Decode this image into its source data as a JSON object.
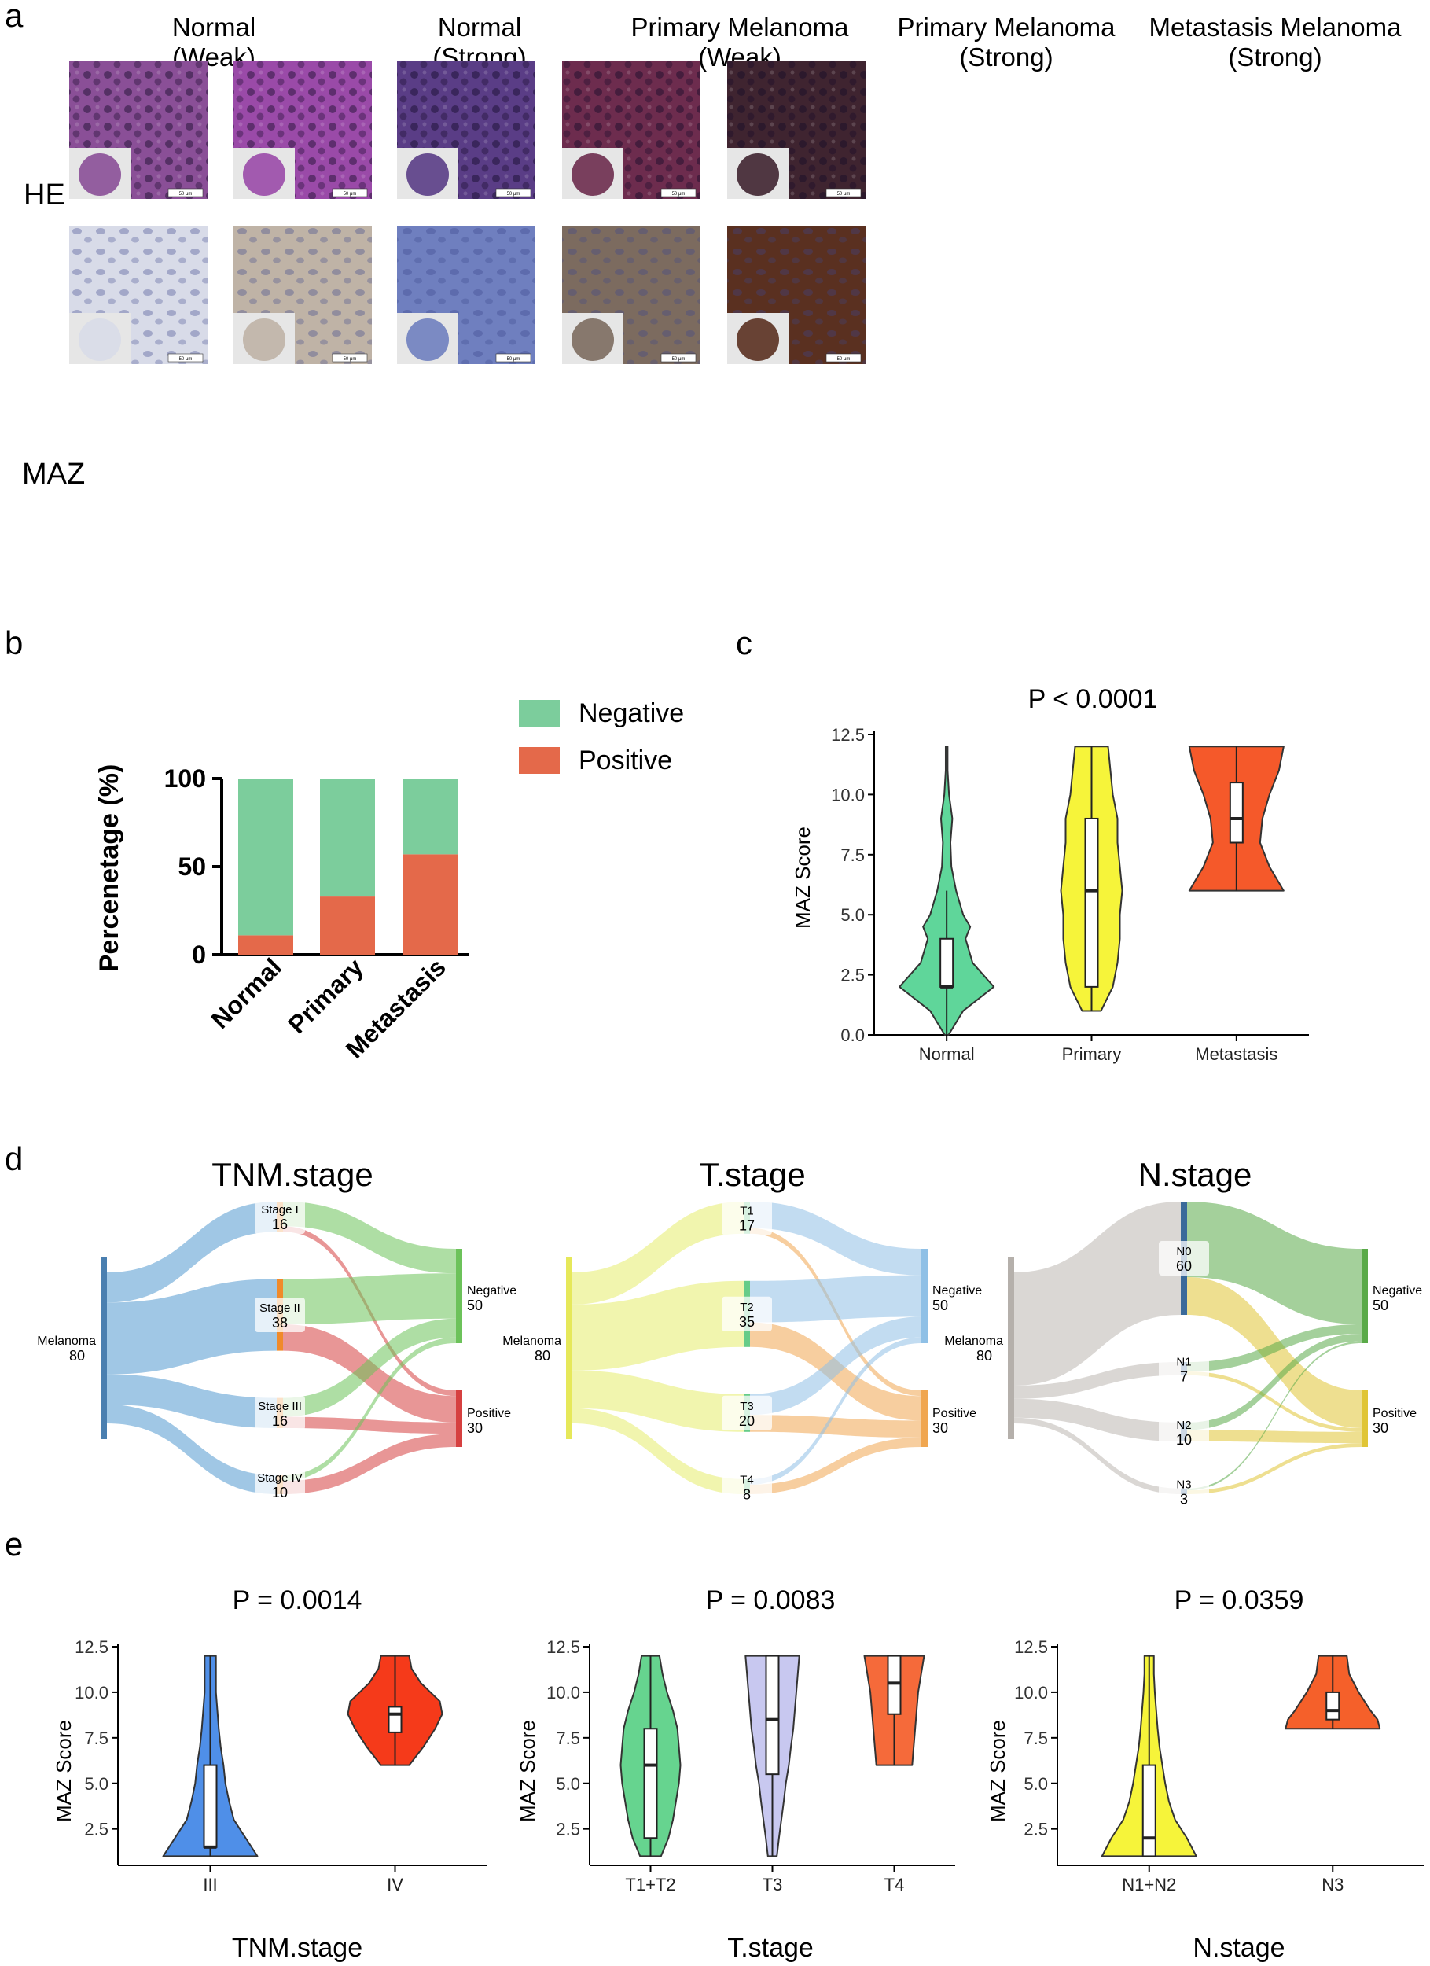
{
  "panel_labels": [
    "a",
    "b",
    "c",
    "d",
    "e"
  ],
  "panel_a": {
    "column_headers": [
      {
        "line1": "Normal",
        "line2": "(Weak)"
      },
      {
        "line1": "Normal",
        "line2": "(Strong)"
      },
      {
        "line1": "Primary Melanoma",
        "line2": "(Weak)"
      },
      {
        "line1": "Primary Melanoma",
        "line2": "(Strong)"
      },
      {
        "line1": "Metastasis Melanoma",
        "line2": "(Strong)"
      }
    ],
    "row_labels": [
      "HE",
      "MAZ"
    ],
    "scale_bar": "50 μm",
    "he_colors": [
      "#8a4f97",
      "#9a4aa8",
      "#5a3d86",
      "#6d2c4e",
      "#3f2430"
    ],
    "maz_colors": [
      "#d8dbe8",
      "#bfb3a6",
      "#6f7fbf",
      "#7c6b5f",
      "#5a3020"
    ]
  },
  "chart_data": [
    {
      "id": "b",
      "type": "bar",
      "stacked": true,
      "categories": [
        "Normal",
        "Primary",
        "Metastasis"
      ],
      "series": [
        {
          "name": "Positive",
          "values": [
            11,
            33,
            57
          ],
          "color": "#e4694a"
        },
        {
          "name": "Negative",
          "values": [
            89,
            67,
            43
          ],
          "color": "#7ccd9c"
        }
      ],
      "ylabel": "Percenetage (%)",
      "yticks": [
        "0",
        "50",
        "100"
      ],
      "ylim": [
        0,
        100
      ],
      "legend_position": "top-right"
    },
    {
      "id": "c",
      "type": "violin",
      "title": "P < 0.0001",
      "ylabel": "MAZ Score",
      "categories": [
        "Normal",
        "Primary",
        "Metastasis"
      ],
      "yticks": [
        "0.0",
        "2.5",
        "5.0",
        "7.5",
        "10.0",
        "12.5"
      ],
      "ylim": [
        0,
        12.5
      ],
      "groups": [
        {
          "name": "Normal",
          "color": "#5fd69a",
          "min": 0,
          "max": 12,
          "q1": 2,
          "median": 2,
          "q3": 4,
          "whisker_low": 0,
          "whisker_high": 6,
          "density": [
            [
              0,
              0.04
            ],
            [
              1,
              0.35
            ],
            [
              2,
              1.0
            ],
            [
              3,
              0.55
            ],
            [
              4,
              0.4
            ],
            [
              4.5,
              0.5
            ],
            [
              5,
              0.35
            ],
            [
              6,
              0.2
            ],
            [
              7,
              0.1
            ],
            [
              8,
              0.08
            ],
            [
              9,
              0.12
            ],
            [
              10,
              0.05
            ],
            [
              11,
              0.02
            ],
            [
              12,
              0.02
            ]
          ]
        },
        {
          "name": "Primary",
          "color": "#f6f43a",
          "min": 1,
          "max": 12,
          "q1": 2,
          "median": 6,
          "q3": 9,
          "whisker_low": 1,
          "whisker_high": 12,
          "density": [
            [
              1,
              0.2
            ],
            [
              2,
              0.45
            ],
            [
              3,
              0.55
            ],
            [
              4,
              0.6
            ],
            [
              5,
              0.6
            ],
            [
              6,
              0.65
            ],
            [
              7,
              0.6
            ],
            [
              8,
              0.55
            ],
            [
              9,
              0.55
            ],
            [
              10,
              0.45
            ],
            [
              11,
              0.4
            ],
            [
              12,
              0.35
            ]
          ]
        },
        {
          "name": "Metastasis",
          "color": "#f5592a",
          "min": 6,
          "max": 12,
          "q1": 8,
          "median": 9,
          "q3": 10.5,
          "whisker_low": 6,
          "whisker_high": 12,
          "density": [
            [
              6,
              1.0
            ],
            [
              7,
              0.7
            ],
            [
              8,
              0.5
            ],
            [
              9,
              0.55
            ],
            [
              10,
              0.7
            ],
            [
              11,
              0.9
            ],
            [
              12,
              1.0
            ]
          ]
        }
      ]
    },
    {
      "id": "d1",
      "type": "sankey",
      "title": "TNM.stage",
      "source": {
        "name": "Melanoma",
        "value": 80
      },
      "middle": [
        {
          "name": "Stage I",
          "value": 16,
          "to_negative": 13,
          "to_positive": 3
        },
        {
          "name": "Stage II",
          "value": 38,
          "to_negative": 24,
          "to_positive": 14
        },
        {
          "name": "Stage III",
          "value": 16,
          "to_negative": 10,
          "to_positive": 6
        },
        {
          "name": "Stage IV",
          "value": 10,
          "to_negative": 3,
          "to_positive": 7
        }
      ],
      "targets": [
        {
          "name": "Negative",
          "value": 50
        },
        {
          "name": "Positive",
          "value": 30
        }
      ],
      "source_color": "#4a7fb0",
      "flow_color": "#8fbde0",
      "neg_color": "#6cc25a",
      "pos_color": "#d64040",
      "middle_color": "#f08a2a"
    },
    {
      "id": "d2",
      "type": "sankey",
      "title": "T.stage",
      "source": {
        "name": "Melanoma",
        "value": 80
      },
      "middle": [
        {
          "name": "T1",
          "value": 17,
          "to_negative": 14,
          "to_positive": 3
        },
        {
          "name": "T2",
          "value": 35,
          "to_negative": 22,
          "to_positive": 13
        },
        {
          "name": "T3",
          "value": 20,
          "to_negative": 11,
          "to_positive": 9
        },
        {
          "name": "T4",
          "value": 8,
          "to_negative": 3,
          "to_positive": 5
        }
      ],
      "targets": [
        {
          "name": "Negative",
          "value": 50
        },
        {
          "name": "Positive",
          "value": 30
        }
      ],
      "source_color": "#e6e85a",
      "flow_color": "#eef3a0",
      "neg_color": "#8fc0e6",
      "pos_color": "#f0a650",
      "middle_color": "#66cc88"
    },
    {
      "id": "d3",
      "type": "sankey",
      "title": "N.stage",
      "source": {
        "name": "Melanoma",
        "value": 80
      },
      "middle": [
        {
          "name": "N0",
          "value": 60,
          "to_negative": 40,
          "to_positive": 20
        },
        {
          "name": "N1",
          "value": 7,
          "to_negative": 5,
          "to_positive": 2
        },
        {
          "name": "N2",
          "value": 10,
          "to_negative": 4,
          "to_positive": 6
        },
        {
          "name": "N3",
          "value": 3,
          "to_negative": 1,
          "to_positive": 2
        }
      ],
      "targets": [
        {
          "name": "Negative",
          "value": 50
        },
        {
          "name": "Positive",
          "value": 30
        }
      ],
      "source_color": "#b5b0ab",
      "flow_color": "#d4d0cc",
      "neg_color": "#5aaa48",
      "pos_color": "#e0c535",
      "middle_color": "#3a6a9a"
    },
    {
      "id": "e1",
      "type": "violin",
      "title": "P = 0.0014",
      "xlabel": "TNM.stage",
      "ylabel": "MAZ Score",
      "categories": [
        "III",
        "IV"
      ],
      "yticks": [
        "2.5",
        "5.0",
        "7.5",
        "10.0",
        "12.5"
      ],
      "ylim": [
        0.5,
        12.5
      ],
      "groups": [
        {
          "name": "III",
          "color": "#4f8fe8",
          "min": 1,
          "max": 12,
          "q1": 1.5,
          "median": 1.5,
          "q3": 6,
          "whisker_low": 1,
          "whisker_high": 12,
          "density": [
            [
              1,
              1.0
            ],
            [
              2,
              0.75
            ],
            [
              3,
              0.5
            ],
            [
              4,
              0.4
            ],
            [
              5,
              0.32
            ],
            [
              6,
              0.28
            ],
            [
              7,
              0.22
            ],
            [
              8,
              0.18
            ],
            [
              9,
              0.15
            ],
            [
              10,
              0.12
            ],
            [
              11,
              0.12
            ],
            [
              12,
              0.12
            ]
          ]
        },
        {
          "name": "IV",
          "color": "#f53a1a",
          "min": 6,
          "max": 12,
          "q1": 7.8,
          "median": 8.8,
          "q3": 9.2,
          "whisker_low": 6,
          "whisker_high": 12,
          "density": [
            [
              6,
              0.3
            ],
            [
              6.5,
              0.45
            ],
            [
              7,
              0.6
            ],
            [
              8,
              0.85
            ],
            [
              8.8,
              1.0
            ],
            [
              9.5,
              0.95
            ],
            [
              10.5,
              0.55
            ],
            [
              11.3,
              0.35
            ],
            [
              12,
              0.3
            ]
          ]
        }
      ]
    },
    {
      "id": "e2",
      "type": "violin",
      "title": "P = 0.0083",
      "xlabel": "T.stage",
      "ylabel": "MAZ Score",
      "categories": [
        "T1+T2",
        "T3",
        "T4"
      ],
      "yticks": [
        "2.5",
        "5.0",
        "7.5",
        "10.0",
        "12.5"
      ],
      "ylim": [
        0.5,
        12.5
      ],
      "groups": [
        {
          "name": "T1+T2",
          "color": "#66d48f",
          "min": 1,
          "max": 12,
          "q1": 2,
          "median": 6,
          "q3": 8,
          "whisker_low": 1,
          "whisker_high": 12,
          "density": [
            [
              1,
              0.35
            ],
            [
              2,
              0.6
            ],
            [
              3,
              0.75
            ],
            [
              4,
              0.85
            ],
            [
              5,
              0.95
            ],
            [
              6,
              1.0
            ],
            [
              7,
              0.95
            ],
            [
              8,
              0.9
            ],
            [
              9,
              0.75
            ],
            [
              10,
              0.55
            ],
            [
              11,
              0.4
            ],
            [
              12,
              0.3
            ]
          ]
        },
        {
          "name": "T3",
          "color": "#c8c8f0",
          "min": 1,
          "max": 12,
          "q1": 5.5,
          "median": 8.5,
          "q3": 12,
          "whisker_low": 1,
          "whisker_high": 12,
          "density": [
            [
              1,
              0.15
            ],
            [
              2,
              0.22
            ],
            [
              3,
              0.3
            ],
            [
              4,
              0.38
            ],
            [
              5,
              0.45
            ],
            [
              6,
              0.55
            ],
            [
              7,
              0.62
            ],
            [
              8,
              0.7
            ],
            [
              9,
              0.75
            ],
            [
              10,
              0.8
            ],
            [
              11,
              0.85
            ],
            [
              12,
              0.9
            ]
          ]
        },
        {
          "name": "T4",
          "color": "#f56a3a",
          "min": 6,
          "max": 12,
          "q1": 8.8,
          "median": 10.5,
          "q3": 12,
          "whisker_low": 6,
          "whisker_high": 12,
          "density": [
            [
              6,
              0.6
            ],
            [
              7,
              0.65
            ],
            [
              8,
              0.7
            ],
            [
              9,
              0.75
            ],
            [
              10,
              0.8
            ],
            [
              11,
              0.9
            ],
            [
              12,
              1.0
            ]
          ]
        }
      ]
    },
    {
      "id": "e3",
      "type": "violin",
      "title": "P = 0.0359",
      "xlabel": "N.stage",
      "ylabel": "MAZ Score",
      "categories": [
        "N1+N2",
        "N3"
      ],
      "yticks": [
        "2.5",
        "5.0",
        "7.5",
        "10.0",
        "12.5"
      ],
      "ylim": [
        0.5,
        12.5
      ],
      "groups": [
        {
          "name": "N1+N2",
          "color": "#f6f43a",
          "min": 1,
          "max": 12,
          "q1": 1,
          "median": 2,
          "q3": 6,
          "whisker_low": 1,
          "whisker_high": 12,
          "density": [
            [
              1,
              1.0
            ],
            [
              2,
              0.8
            ],
            [
              3,
              0.55
            ],
            [
              4,
              0.42
            ],
            [
              5,
              0.34
            ],
            [
              6,
              0.28
            ],
            [
              7,
              0.22
            ],
            [
              8,
              0.18
            ],
            [
              9,
              0.15
            ],
            [
              10,
              0.12
            ],
            [
              11,
              0.1
            ],
            [
              12,
              0.1
            ]
          ]
        },
        {
          "name": "N3",
          "color": "#f5602a",
          "min": 8,
          "max": 12,
          "q1": 8.5,
          "median": 9,
          "q3": 10,
          "whisker_low": 8,
          "whisker_high": 12,
          "density": [
            [
              8,
              1.0
            ],
            [
              8.5,
              0.95
            ],
            [
              9,
              0.8
            ],
            [
              10,
              0.55
            ],
            [
              11,
              0.35
            ],
            [
              12,
              0.3
            ]
          ]
        }
      ]
    }
  ]
}
